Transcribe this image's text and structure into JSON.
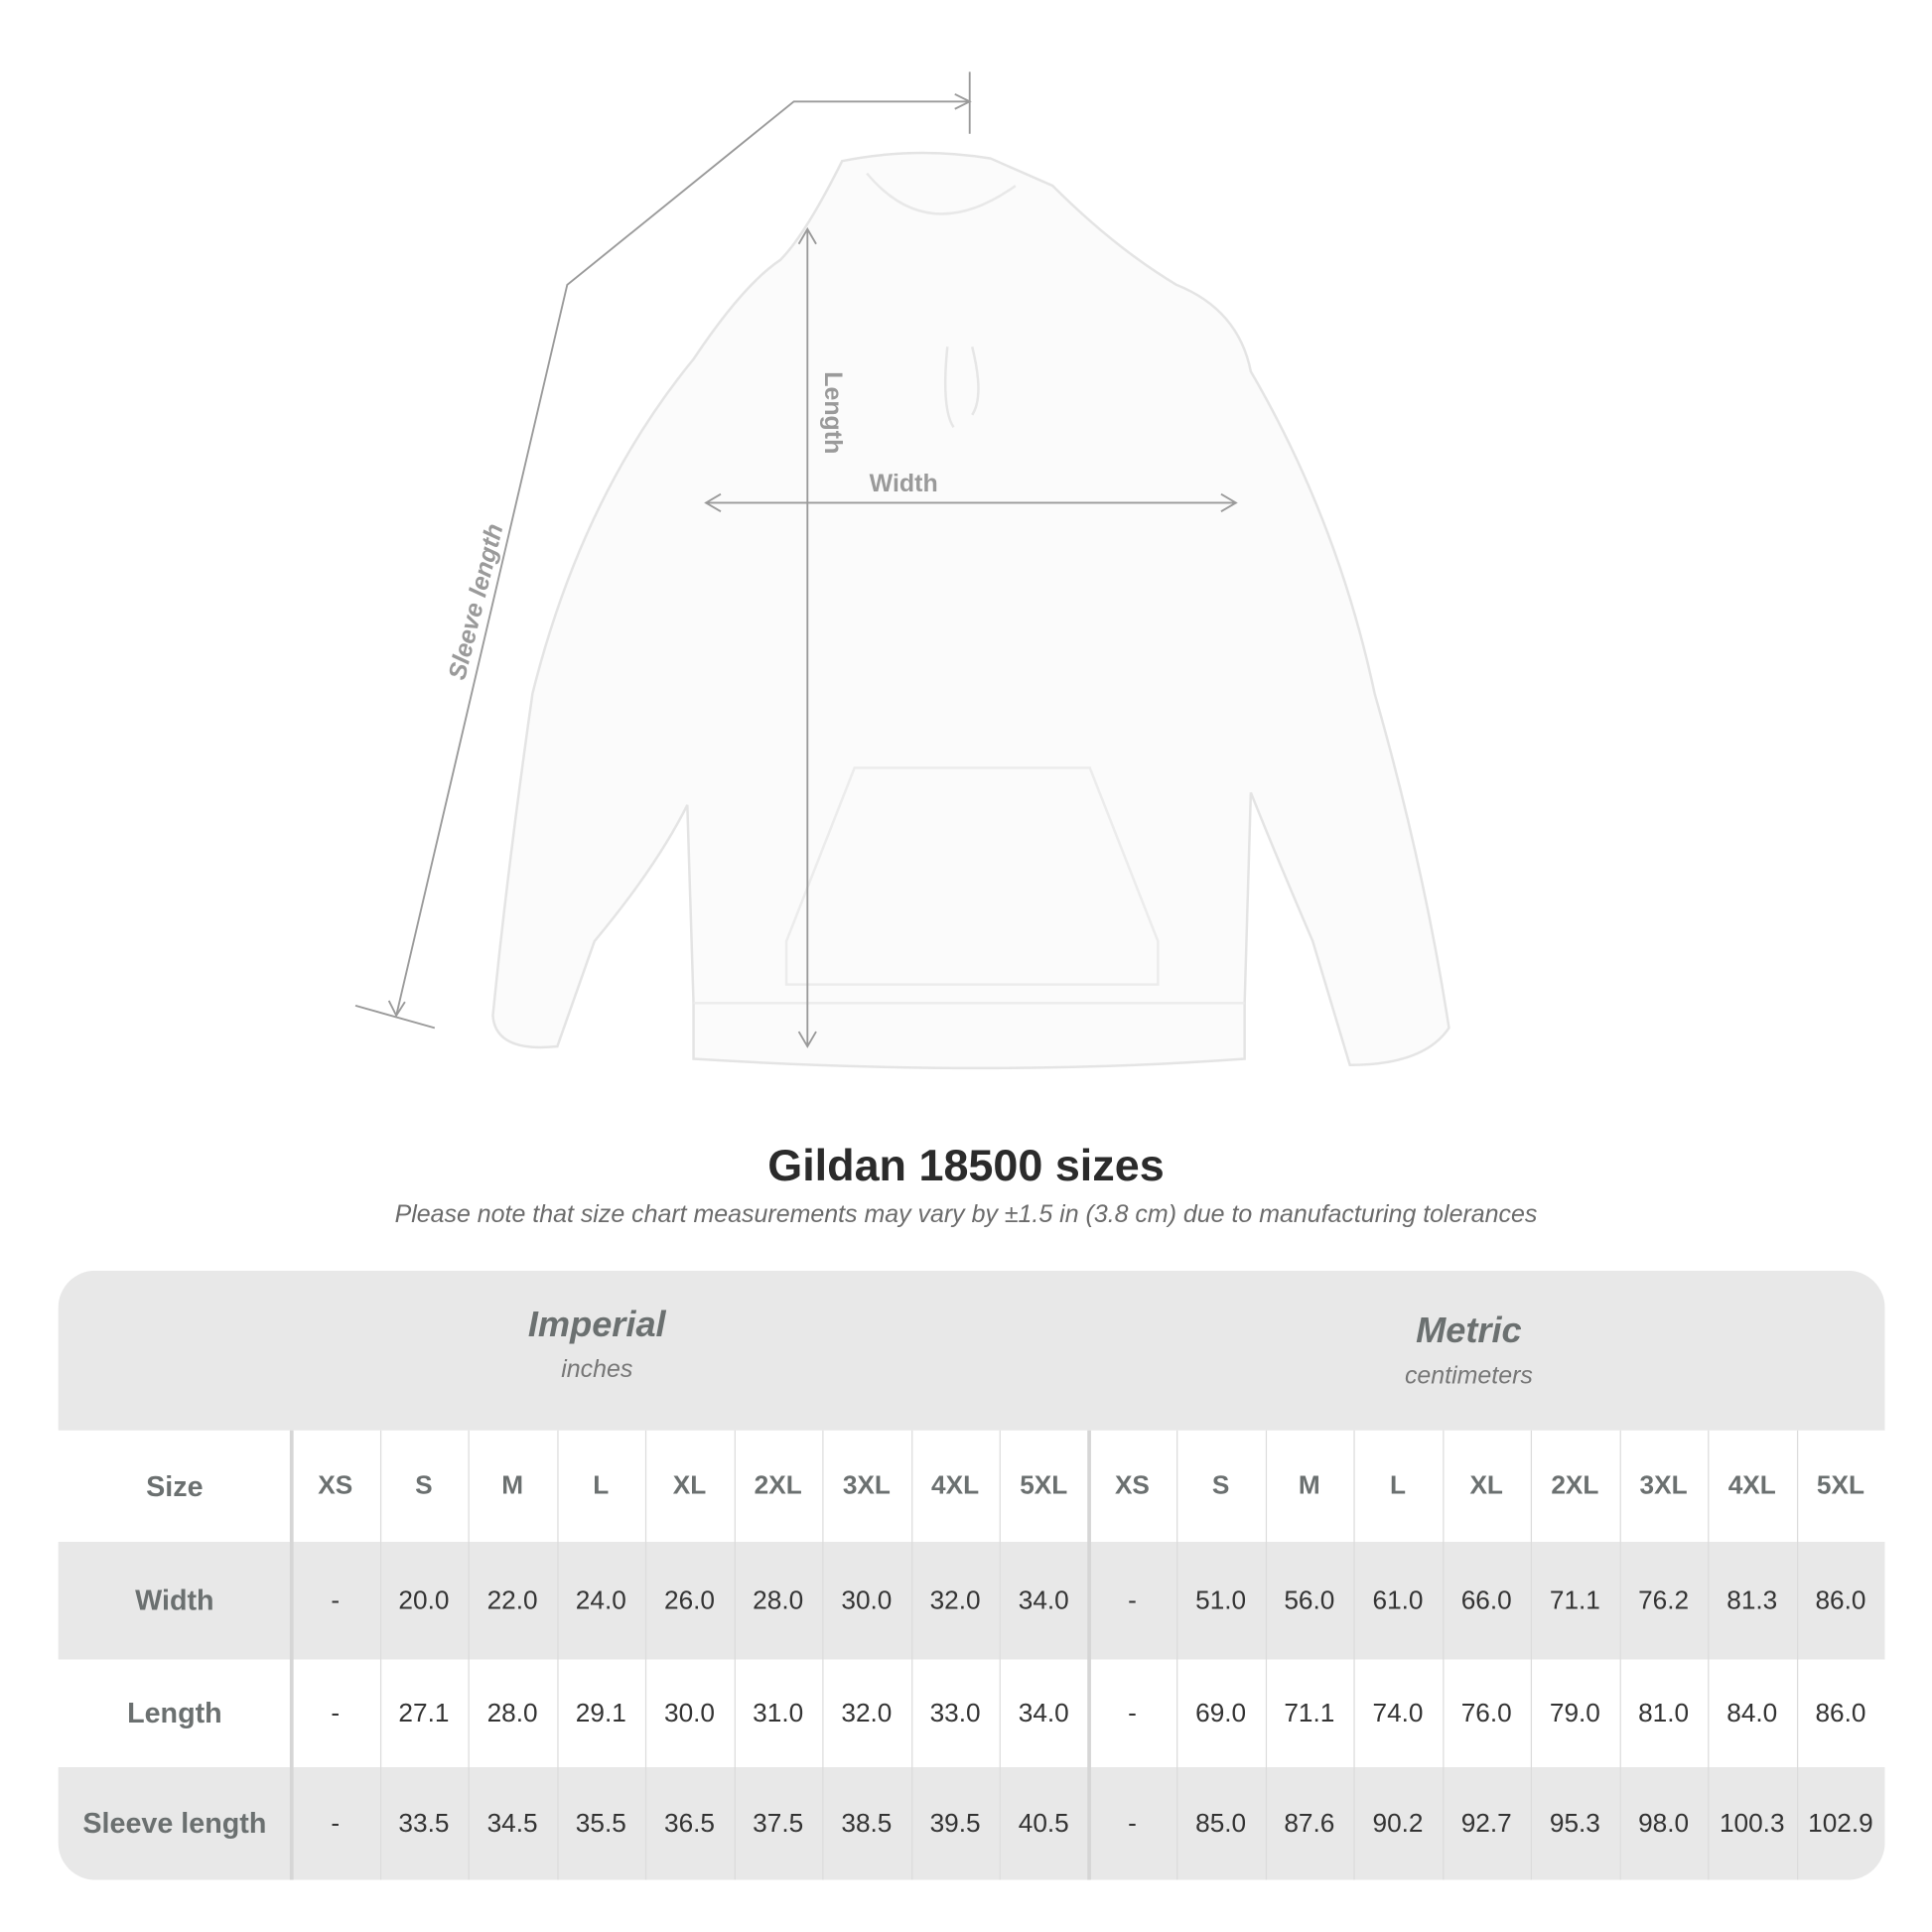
{
  "diagram": {
    "labels": {
      "length": "Length",
      "width": "Width",
      "sleeve": "Sleeve length"
    },
    "line_color": "#9a9a9a"
  },
  "title": "Gildan 18500 sizes",
  "note": "Please note that size chart measurements may vary by ±1.5 in (3.8 cm) due to manufacturing tolerances",
  "table": {
    "imperial": {
      "name": "Imperial",
      "unit": "inches"
    },
    "metric": {
      "name": "Metric",
      "unit": "centimeters"
    },
    "size_label": "Size",
    "sizes": [
      "XS",
      "S",
      "M",
      "L",
      "XL",
      "2XL",
      "3XL",
      "4XL",
      "5XL"
    ],
    "rows": [
      {
        "label": "Width",
        "imperial": [
          "-",
          "20.0",
          "22.0",
          "24.0",
          "26.0",
          "28.0",
          "30.0",
          "32.0",
          "34.0"
        ],
        "metric": [
          "-",
          "51.0",
          "56.0",
          "61.0",
          "66.0",
          "71.1",
          "76.2",
          "81.3",
          "86.0"
        ]
      },
      {
        "label": "Length",
        "imperial": [
          "-",
          "27.1",
          "28.0",
          "29.1",
          "30.0",
          "31.0",
          "32.0",
          "33.0",
          "34.0"
        ],
        "metric": [
          "-",
          "69.0",
          "71.1",
          "74.0",
          "76.0",
          "79.0",
          "81.0",
          "84.0",
          "86.0"
        ]
      },
      {
        "label": "Sleeve length",
        "imperial": [
          "-",
          "33.5",
          "34.5",
          "35.5",
          "36.5",
          "37.5",
          "38.5",
          "39.5",
          "40.5"
        ],
        "metric": [
          "-",
          "85.0",
          "87.6",
          "90.2",
          "92.7",
          "95.3",
          "98.0",
          "100.3",
          "102.9"
        ]
      }
    ],
    "colors": {
      "band": "#e8e8e8",
      "header_text": "#6b7070"
    }
  }
}
